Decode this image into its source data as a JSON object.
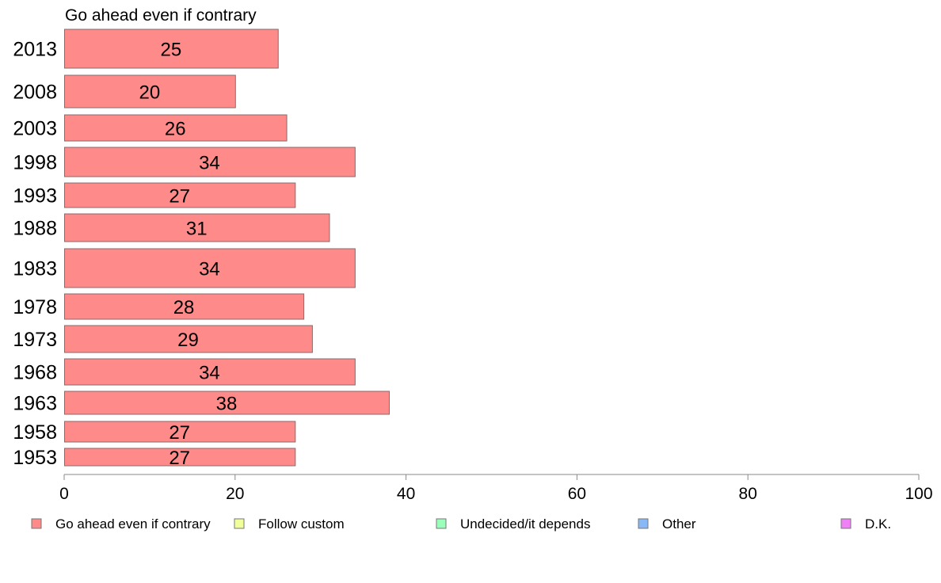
{
  "chart_data": {
    "type": "bar",
    "orientation": "horizontal",
    "title": "Go ahead even if contrary",
    "categories": [
      "2013",
      "2008",
      "2003",
      "1998",
      "1993",
      "1988",
      "1983",
      "1978",
      "1973",
      "1968",
      "1963",
      "1958",
      "1953"
    ],
    "series": [
      {
        "name": "Go ahead even if contrary",
        "values": [
          25,
          20,
          26,
          34,
          27,
          31,
          34,
          28,
          29,
          34,
          38,
          27,
          27
        ],
        "value_labels": [
          "25",
          "20",
          "26",
          "34",
          "27",
          "31",
          "34",
          "28",
          "29",
          "34",
          "38",
          "27",
          "27"
        ],
        "color": "#ff8a8a"
      }
    ],
    "xlim": [
      0,
      100
    ],
    "x_ticks": [
      "0",
      "20",
      "40",
      "60",
      "80",
      "100"
    ],
    "grid": false,
    "legend": {
      "position": "bottom",
      "items": [
        {
          "label": "Go ahead even if contrary",
          "color": "#ff8a8a"
        },
        {
          "label": "Follow custom",
          "color": "#f0ff99"
        },
        {
          "label": "Undecided/it depends",
          "color": "#99ffbb"
        },
        {
          "label": "Other",
          "color": "#88b8f5"
        },
        {
          "label": "D.K.",
          "color": "#f080f5"
        }
      ]
    }
  }
}
